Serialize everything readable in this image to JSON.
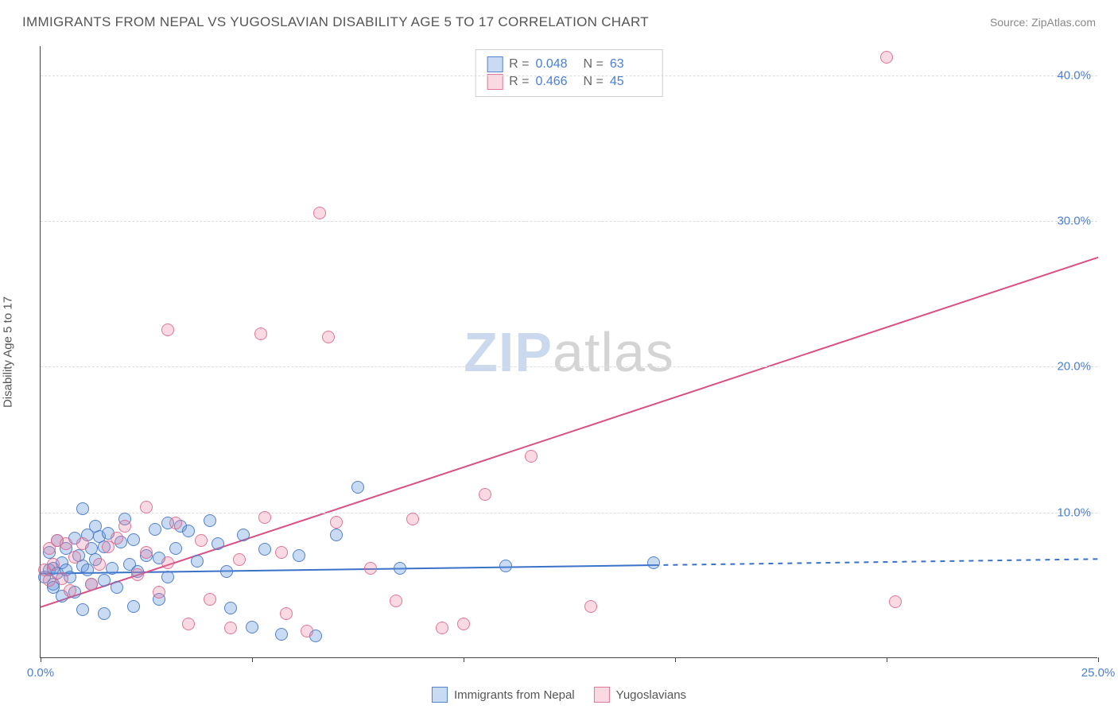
{
  "title": "IMMIGRANTS FROM NEPAL VS YUGOSLAVIAN DISABILITY AGE 5 TO 17 CORRELATION CHART",
  "source_label": "Source:",
  "source_name": "ZipAtlas.com",
  "y_axis_label": "Disability Age 5 to 17",
  "watermark_a": "ZIP",
  "watermark_b": "atlas",
  "chart": {
    "type": "scatter",
    "xlim": [
      0,
      25
    ],
    "ylim": [
      0,
      42
    ],
    "x_ticks": [
      0,
      5,
      10,
      15,
      20,
      25
    ],
    "x_tick_labels": {
      "0": "0.0%",
      "25": "25.0%"
    },
    "y_ticks": [
      10,
      20,
      30,
      40
    ],
    "y_tick_labels": {
      "10": "10.0%",
      "20": "20.0%",
      "30": "30.0%",
      "40": "40.0%"
    },
    "grid_color": "#dddddd",
    "background_color": "#ffffff",
    "axis_color": "#444444",
    "marker_radius": 8,
    "series": [
      {
        "name": "Immigrants from Nepal",
        "color_fill": "rgba(100,150,220,0.35)",
        "color_stroke": "rgba(70,120,200,0.9)",
        "R": "0.048",
        "N": "63",
        "trend": {
          "x1": 0,
          "y1": 5.8,
          "x2": 25,
          "y2": 6.8,
          "solid_to_x": 14.5,
          "color": "#3a72c9",
          "width": 2
        },
        "points": [
          [
            0.1,
            5.5
          ],
          [
            0.2,
            6.0
          ],
          [
            0.2,
            7.2
          ],
          [
            0.3,
            5.0
          ],
          [
            0.3,
            4.8
          ],
          [
            0.3,
            6.1
          ],
          [
            0.4,
            8.0
          ],
          [
            0.4,
            5.8
          ],
          [
            0.5,
            6.5
          ],
          [
            0.5,
            4.2
          ],
          [
            0.6,
            7.5
          ],
          [
            0.6,
            6.0
          ],
          [
            0.7,
            5.5
          ],
          [
            0.8,
            8.2
          ],
          [
            0.8,
            4.5
          ],
          [
            0.9,
            7.0
          ],
          [
            1.0,
            10.2
          ],
          [
            1.0,
            6.3
          ],
          [
            1.0,
            3.3
          ],
          [
            1.1,
            8.4
          ],
          [
            1.1,
            6.0
          ],
          [
            1.2,
            7.5
          ],
          [
            1.2,
            5.0
          ],
          [
            1.3,
            9.0
          ],
          [
            1.3,
            6.7
          ],
          [
            1.4,
            8.3
          ],
          [
            1.5,
            7.6
          ],
          [
            1.5,
            5.3
          ],
          [
            1.5,
            3.0
          ],
          [
            1.6,
            8.5
          ],
          [
            1.7,
            6.1
          ],
          [
            1.8,
            4.8
          ],
          [
            1.9,
            7.9
          ],
          [
            2.0,
            9.5
          ],
          [
            2.1,
            6.4
          ],
          [
            2.2,
            8.1
          ],
          [
            2.2,
            3.5
          ],
          [
            2.3,
            5.9
          ],
          [
            2.5,
            7.0
          ],
          [
            2.7,
            8.8
          ],
          [
            2.8,
            4.0
          ],
          [
            2.8,
            6.8
          ],
          [
            3.0,
            9.2
          ],
          [
            3.0,
            5.5
          ],
          [
            3.2,
            7.5
          ],
          [
            3.3,
            9.0
          ],
          [
            3.5,
            8.7
          ],
          [
            3.7,
            6.6
          ],
          [
            4.0,
            9.4
          ],
          [
            4.2,
            7.8
          ],
          [
            4.4,
            5.9
          ],
          [
            4.5,
            3.4
          ],
          [
            4.8,
            8.4
          ],
          [
            5.0,
            2.1
          ],
          [
            5.3,
            7.4
          ],
          [
            5.7,
            1.6
          ],
          [
            6.1,
            7.0
          ],
          [
            6.5,
            1.5
          ],
          [
            7.0,
            8.4
          ],
          [
            7.5,
            11.7
          ],
          [
            8.5,
            6.1
          ],
          [
            11.0,
            6.3
          ],
          [
            14.5,
            6.5
          ]
        ]
      },
      {
        "name": "Yugoslavians",
        "color_fill": "rgba(235,130,160,0.3)",
        "color_stroke": "rgba(220,100,140,0.85)",
        "R": "0.466",
        "N": "45",
        "trend": {
          "x1": 0,
          "y1": 3.5,
          "x2": 25,
          "y2": 27.5,
          "color": "#d95085",
          "width": 2
        },
        "points": [
          [
            0.1,
            6.0
          ],
          [
            0.2,
            5.3
          ],
          [
            0.2,
            7.5
          ],
          [
            0.3,
            6.4
          ],
          [
            0.4,
            8.0
          ],
          [
            0.5,
            5.4
          ],
          [
            0.6,
            7.8
          ],
          [
            0.7,
            4.6
          ],
          [
            0.8,
            6.9
          ],
          [
            1.0,
            7.8
          ],
          [
            1.2,
            5.0
          ],
          [
            1.4,
            6.4
          ],
          [
            1.6,
            7.6
          ],
          [
            1.8,
            8.2
          ],
          [
            2.0,
            9.0
          ],
          [
            2.3,
            5.7
          ],
          [
            2.5,
            7.2
          ],
          [
            2.5,
            10.3
          ],
          [
            2.8,
            4.5
          ],
          [
            3.0,
            6.5
          ],
          [
            3.0,
            22.5
          ],
          [
            3.2,
            9.2
          ],
          [
            3.5,
            2.3
          ],
          [
            3.8,
            8.0
          ],
          [
            4.0,
            4.0
          ],
          [
            4.5,
            2.0
          ],
          [
            4.7,
            6.7
          ],
          [
            5.2,
            22.2
          ],
          [
            5.3,
            9.6
          ],
          [
            5.7,
            7.2
          ],
          [
            5.8,
            3.0
          ],
          [
            6.3,
            1.8
          ],
          [
            6.6,
            30.5
          ],
          [
            6.8,
            22.0
          ],
          [
            7.0,
            9.3
          ],
          [
            7.8,
            6.1
          ],
          [
            8.4,
            3.9
          ],
          [
            8.8,
            9.5
          ],
          [
            9.5,
            2.0
          ],
          [
            10.0,
            2.3
          ],
          [
            10.5,
            11.2
          ],
          [
            11.6,
            13.8
          ],
          [
            13.0,
            3.5
          ],
          [
            20.0,
            41.2
          ],
          [
            20.2,
            3.8
          ]
        ]
      }
    ]
  },
  "stats_legend": {
    "rows": [
      {
        "swatch": "blue",
        "R_label": "R =",
        "R": "0.048",
        "N_label": "N =",
        "N": "63"
      },
      {
        "swatch": "pink",
        "R_label": "R =",
        "R": "0.466",
        "N_label": "N =",
        "N": "45"
      }
    ]
  },
  "bottom_legend": {
    "items": [
      {
        "swatch": "blue",
        "label": "Immigrants from Nepal"
      },
      {
        "swatch": "pink",
        "label": "Yugoslavians"
      }
    ]
  }
}
